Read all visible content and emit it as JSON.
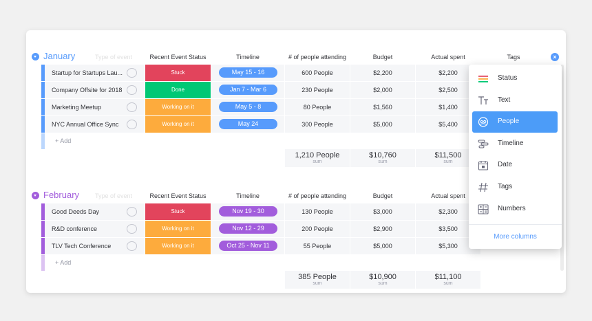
{
  "columns": {
    "ghost": "Type of event",
    "status": "Recent Event Status",
    "timeline": "Timeline",
    "people": "# of people attending",
    "budget": "Budget",
    "actual": "Actual spent",
    "tags": "Tags"
  },
  "colors": {
    "january": "#579bfc",
    "february": "#a25ddc",
    "stuck": "#e2445c",
    "done": "#00c875",
    "working": "#fdab3d"
  },
  "add_label": "+ Add",
  "sum_label": "sum",
  "groups": [
    {
      "title": "January",
      "rows": [
        {
          "name": "Startup for Startups Lau...",
          "status": "Stuck",
          "timeline": "May 15 - 16",
          "people": "600 People",
          "budget": "$2,200",
          "actual": "$2,200"
        },
        {
          "name": "Company Offsite for 2018",
          "status": "Done",
          "timeline": "Jan 7 - Mar 6",
          "people": "230 People",
          "budget": "$2,000",
          "actual": "$2,500"
        },
        {
          "name": "Marketing Meetup",
          "status": "Working on it",
          "timeline": "May 5 - 8",
          "people": "80 People",
          "budget": "$1,560",
          "actual": "$1,400"
        },
        {
          "name": "NYC Annual Office Sync",
          "status": "Working on it",
          "timeline": "May 24",
          "people": "300 People",
          "budget": "$5,000",
          "actual": "$5,400"
        }
      ],
      "sums": {
        "people": "1,210 People",
        "budget": "$10,760",
        "actual": "$11,500"
      }
    },
    {
      "title": "February",
      "rows": [
        {
          "name": "Good Deeds Day",
          "status": "Stuck",
          "timeline": "Nov 19 - 30",
          "people": "130 People",
          "budget": "$3,000",
          "actual": "$2,300"
        },
        {
          "name": "R&D conference",
          "status": "Working on it",
          "timeline": "Nov 12 - 29",
          "people": "200 People",
          "budget": "$2,900",
          "actual": "$3,500"
        },
        {
          "name": "TLV Tech Conference",
          "status": "Working on it",
          "timeline": "Oct 25 - Nov 11",
          "people": "55 People",
          "budget": "$5,000",
          "actual": "$5,300"
        }
      ],
      "sums": {
        "people": "385 People",
        "budget": "$10,900",
        "actual": "$11,100"
      }
    }
  ],
  "menu": {
    "items": [
      {
        "label": "Status",
        "icon": "status-icon"
      },
      {
        "label": "Text",
        "icon": "text-icon"
      },
      {
        "label": "People",
        "icon": "people-icon",
        "active": true
      },
      {
        "label": "Timeline",
        "icon": "timeline-icon"
      },
      {
        "label": "Date",
        "icon": "date-icon"
      },
      {
        "label": "Tags",
        "icon": "tags-icon"
      },
      {
        "label": "Numbers",
        "icon": "numbers-icon"
      }
    ],
    "more": "More columns"
  }
}
